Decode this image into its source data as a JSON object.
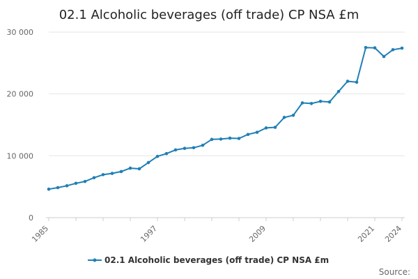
{
  "chart_data": {
    "type": "line",
    "title": "02.1 Alcoholic beverages (off trade) CP NSA £m",
    "xlabel": "",
    "ylabel": "",
    "xlim": [
      1985,
      2024
    ],
    "ylim": [
      0,
      30000
    ],
    "grid": true,
    "legend_position": "bottom",
    "y_ticks": [
      0,
      10000,
      20000,
      30000
    ],
    "y_tick_labels": [
      "0",
      "10 000",
      "20 000",
      "30 000"
    ],
    "x_ticks": [
      1985,
      1997,
      2009,
      2021,
      2024
    ],
    "x_tick_labels": [
      "1985",
      "1997",
      "2009",
      "2021",
      "2024"
    ],
    "series": [
      {
        "name": "02.1 Alcoholic beverages (off trade) CP NSA £m",
        "color": "#1f7fb6",
        "x": [
          1985,
          1986,
          1987,
          1988,
          1989,
          1990,
          1991,
          1992,
          1993,
          1994,
          1995,
          1996,
          1997,
          1998,
          1999,
          2000,
          2001,
          2002,
          2003,
          2004,
          2005,
          2006,
          2007,
          2008,
          2009,
          2010,
          2011,
          2012,
          2013,
          2014,
          2015,
          2016,
          2017,
          2018,
          2019,
          2020,
          2021,
          2022,
          2023,
          2024
        ],
        "values": [
          4600,
          4850,
          5150,
          5550,
          5850,
          6450,
          6950,
          7150,
          7450,
          8000,
          7900,
          8900,
          9900,
          10350,
          10950,
          11200,
          11300,
          11700,
          12650,
          12700,
          12850,
          12800,
          13450,
          13800,
          14500,
          14600,
          16200,
          16550,
          18550,
          18450,
          18800,
          18700,
          20400,
          22050,
          21900,
          27500,
          27450,
          26050,
          27150,
          27400
        ]
      }
    ]
  },
  "source_label": "Source:"
}
